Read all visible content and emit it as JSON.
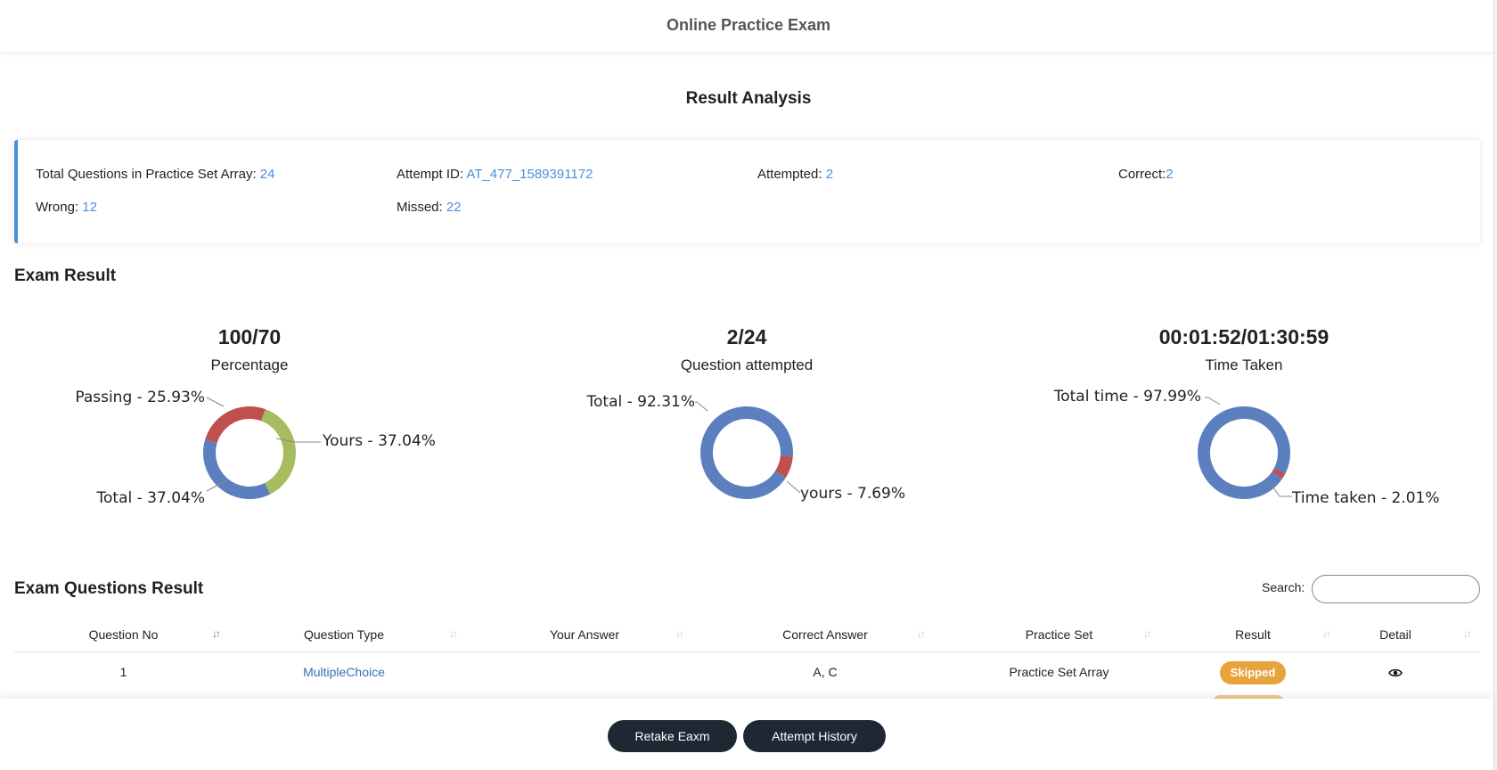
{
  "header": {
    "title": "Online Practice Exam"
  },
  "result_analysis": {
    "title": "Result Analysis",
    "items": [
      {
        "label": "Total Questions in Practice Set Array: ",
        "value": "24"
      },
      {
        "label": "Attempt ID: ",
        "value": "AT_477_1589391172"
      },
      {
        "label": "Attempted: ",
        "value": "2"
      },
      {
        "label": "Correct:",
        "value": "2"
      },
      {
        "label": "Wrong: ",
        "value": "12"
      },
      {
        "label": "Missed: ",
        "value": "22"
      }
    ]
  },
  "exam_result": {
    "title": "Exam Result",
    "colors": {
      "blue": "#5b7fbf",
      "red": "#c0504d",
      "green": "#a6bc5e"
    },
    "charts": [
      {
        "big": "100/70",
        "sub": "Percentage",
        "slices": [
          {
            "label": "Yours - 37.04%",
            "value": 37.04,
            "color": "#a6bc5e"
          },
          {
            "label": "Total - 37.04%",
            "value": 37.04,
            "color": "#5b7fbf"
          },
          {
            "label": "Passing - 25.93%",
            "value": 25.93,
            "color": "#c0504d"
          }
        ]
      },
      {
        "big": "2/24",
        "sub": "Question attempted",
        "slices": [
          {
            "label": "yours - 7.69%",
            "value": 7.69,
            "color": "#c0504d"
          },
          {
            "label": "Total - 92.31%",
            "value": 92.31,
            "color": "#5b7fbf"
          }
        ]
      },
      {
        "big": "00:01:52/01:30:59",
        "sub": "Time Taken",
        "slices": [
          {
            "label": "Time taken - 2.01%",
            "value": 2.01,
            "color": "#c0504d"
          },
          {
            "label": "Total time - 97.99%",
            "value": 97.99,
            "color": "#5b7fbf"
          }
        ]
      }
    ]
  },
  "questions": {
    "title": "Exam Questions Result",
    "search_label": "Search:",
    "search_value": "",
    "columns": [
      "Question No",
      "Question Type",
      "Your Answer",
      "Correct Answer",
      "Practice Set",
      "Result",
      "Detail"
    ],
    "rows": [
      {
        "no": "1",
        "type": "MultipleChoice",
        "your_answer": "",
        "correct_answer": "A, C",
        "practice_set": "Practice Set Array",
        "result": "Skipped",
        "detail": "eye-icon"
      }
    ]
  },
  "footer": {
    "retake_label": "Retake Eaxm",
    "history_label": "Attempt History"
  }
}
